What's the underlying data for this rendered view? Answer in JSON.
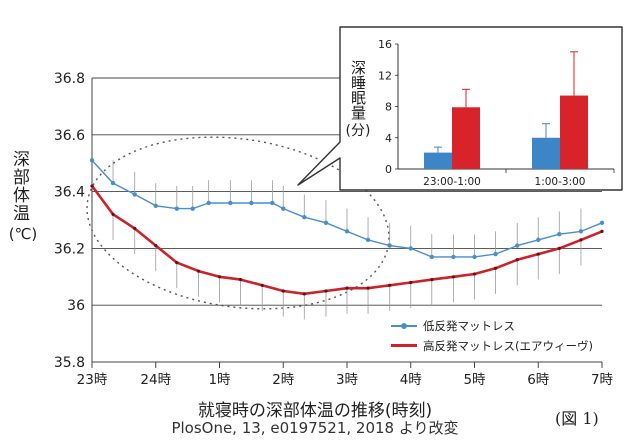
{
  "chart_data": [
    {
      "type": "line",
      "ylabel": "深部体温",
      "yunit": "(℃)",
      "xlabel": "就寝時の深部体温の推移(時刻)",
      "ylim": [
        35.8,
        36.8
      ],
      "yticks": [
        35.8,
        36,
        36.2,
        36.4,
        36.6,
        36.8
      ],
      "ytick_labels": [
        "35.8",
        "36",
        "36.2",
        "36.4",
        "36.6",
        "36.8"
      ],
      "xlim": [
        23,
        31
      ],
      "xticks": [
        23,
        24,
        25,
        26,
        27,
        28,
        29,
        30,
        31
      ],
      "xtick_labels": [
        "23時",
        "24時",
        "1時",
        "2時",
        "3時",
        "4時",
        "5時",
        "6時",
        "7時"
      ],
      "grid": "horizontal",
      "legend_position": "bottom-right",
      "series": [
        {
          "name": "低反発マットレス",
          "color": "#4a8fc9",
          "marker": "dot",
          "x": [
            23.0,
            23.33,
            23.67,
            24.0,
            24.33,
            24.58,
            24.83,
            25.17,
            25.5,
            25.83,
            26.0,
            26.33,
            26.67,
            27.0,
            27.33,
            27.67,
            28.0,
            28.33,
            28.67,
            29.0,
            29.33,
            29.67,
            30.0,
            30.33,
            30.67,
            31.0
          ],
          "y": [
            36.51,
            36.43,
            36.39,
            36.35,
            36.34,
            36.34,
            36.36,
            36.36,
            36.36,
            36.36,
            36.34,
            36.31,
            36.29,
            36.26,
            36.23,
            36.21,
            36.2,
            36.17,
            36.17,
            36.17,
            36.18,
            36.21,
            36.23,
            36.25,
            36.26,
            36.29
          ],
          "err": [
            0.0,
            0.08,
            0.08,
            0.08,
            0.08,
            0.08,
            0.08,
            0.08,
            0.08,
            0.08,
            0.08,
            0.08,
            0.08,
            0.08,
            0.08,
            0.08,
            0.08,
            0.08,
            0.08,
            0.08,
            0.08,
            0.08,
            0.08,
            0.08,
            0.08,
            0.0
          ]
        },
        {
          "name": "高反発マットレス(エアウィーヴ)",
          "color": "#cc2229",
          "marker": "dot",
          "x": [
            23.0,
            23.33,
            23.67,
            24.0,
            24.33,
            24.67,
            25.0,
            25.33,
            25.67,
            26.0,
            26.33,
            26.67,
            27.0,
            27.33,
            27.67,
            28.0,
            28.33,
            28.67,
            29.0,
            29.33,
            29.67,
            30.0,
            30.33,
            30.67,
            31.0
          ],
          "y": [
            36.42,
            36.32,
            36.27,
            36.21,
            36.15,
            36.12,
            36.1,
            36.09,
            36.07,
            36.05,
            36.04,
            36.05,
            36.06,
            36.06,
            36.07,
            36.08,
            36.09,
            36.1,
            36.11,
            36.13,
            36.16,
            36.18,
            36.2,
            36.23,
            36.26
          ],
          "err": [
            0.0,
            0.09,
            0.09,
            0.09,
            0.09,
            0.09,
            0.09,
            0.09,
            0.09,
            0.09,
            0.09,
            0.09,
            0.09,
            0.09,
            0.09,
            0.09,
            0.09,
            0.09,
            0.09,
            0.09,
            0.09,
            0.09,
            0.09,
            0.09,
            0.0
          ]
        }
      ]
    },
    {
      "type": "bar",
      "ylabel": "深睡眠量",
      "yunit": "(分)",
      "ylim": [
        0,
        16
      ],
      "yticks": [
        0,
        4,
        8,
        12,
        16
      ],
      "categories": [
        "23:00-1:00",
        "1:00-3:00"
      ],
      "series": [
        {
          "name": "低反発マットレス",
          "color": "#3c86c8",
          "values": [
            2.1,
            4.0
          ],
          "err": [
            0.7,
            1.8
          ]
        },
        {
          "name": "高反発マットレス(エアウィーヴ)",
          "color": "#d8232a",
          "values": [
            7.9,
            9.4
          ],
          "err": [
            2.3,
            5.6
          ]
        }
      ]
    }
  ],
  "source": "PlosOne, 13, e0197521, 2018 より改変",
  "figure_label": "(図 1)"
}
